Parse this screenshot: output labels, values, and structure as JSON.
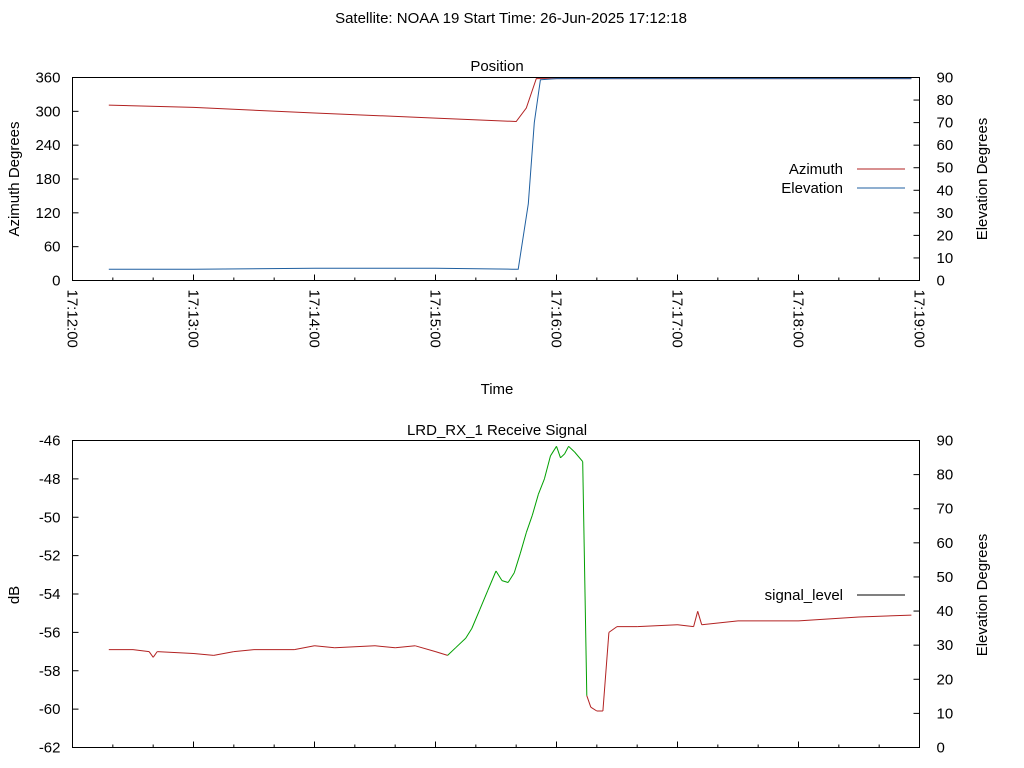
{
  "header": "Satellite: NOAA 19    Start Time: 26-Jun-2025 17:12:18",
  "chart_data": [
    {
      "type": "line",
      "title": "Position",
      "xlabel": "Time",
      "x_ticks": [
        "17:12:00",
        "17:13:00",
        "17:14:00",
        "17:15:00",
        "17:16:00",
        "17:17:00",
        "17:18:00",
        "17:19:00"
      ],
      "xlim": [
        "17:12:00",
        "17:19:00"
      ],
      "ylabel": "Azimuth Degrees",
      "ylim": [
        0,
        360
      ],
      "y_ticks": [
        "0",
        "60",
        "120",
        "180",
        "240",
        "300",
        "360"
      ],
      "y2label": "Elevation Degrees",
      "y2lim": [
        0,
        90
      ],
      "y2_ticks": [
        "0",
        "10",
        "20",
        "30",
        "40",
        "50",
        "60",
        "70",
        "80",
        "90"
      ],
      "grid": false,
      "legend": "right",
      "series": [
        {
          "name": "Azimuth",
          "axis": "left",
          "color": "#b22222",
          "points": [
            [
              "17:12:18",
              311
            ],
            [
              "17:13:00",
              307
            ],
            [
              "17:14:00",
              297
            ],
            [
              "17:15:00",
              288
            ],
            [
              "17:15:40",
              282
            ],
            [
              "17:15:45",
              306
            ],
            [
              "17:15:50",
              358
            ],
            [
              "17:16:00",
              358
            ],
            [
              "17:17:00",
              358
            ],
            [
              "17:18:00",
              358
            ],
            [
              "17:18:56",
              358
            ]
          ]
        },
        {
          "name": "Elevation",
          "axis": "right",
          "color": "#1f5fa0",
          "points": [
            [
              "17:12:18",
              5
            ],
            [
              "17:13:00",
              5
            ],
            [
              "17:14:00",
              5.4
            ],
            [
              "17:15:00",
              5.4
            ],
            [
              "17:15:38",
              5
            ],
            [
              "17:15:41",
              5
            ],
            [
              "17:15:46",
              34
            ],
            [
              "17:15:49",
              70
            ],
            [
              "17:15:52",
              89
            ],
            [
              "17:16:00",
              89.5
            ],
            [
              "17:17:00",
              89.5
            ],
            [
              "17:18:00",
              89.5
            ],
            [
              "17:18:56",
              89.5
            ]
          ]
        }
      ]
    },
    {
      "type": "line",
      "title": "LRD_RX_1 Receive Signal",
      "xlim": [
        "17:12:00",
        "17:19:00"
      ],
      "ylabel": "dB",
      "ylim": [
        -62,
        -46
      ],
      "y_ticks": [
        "-62",
        "-60",
        "-58",
        "-56",
        "-54",
        "-52",
        "-50",
        "-48",
        "-46"
      ],
      "y2label": "Elevation Degrees",
      "y2lim": [
        0,
        90
      ],
      "y2_ticks": [
        "0",
        "10",
        "20",
        "30",
        "40",
        "50",
        "60",
        "70",
        "80",
        "90"
      ],
      "grid": false,
      "legend": "right",
      "colors": {
        "below_horizon": "#b22222",
        "above_horizon": "#00a000",
        "legend_line": "#000000"
      },
      "series": [
        {
          "name": "signal_level",
          "points": [
            [
              "17:12:18",
              -56.9
            ],
            [
              "17:12:30",
              -56.9
            ],
            [
              "17:12:38",
              -57.0
            ],
            [
              "17:12:40",
              -57.3
            ],
            [
              "17:12:42",
              -57.0
            ],
            [
              "17:13:00",
              -57.1
            ],
            [
              "17:13:10",
              -57.2
            ],
            [
              "17:13:20",
              -57.0
            ],
            [
              "17:13:30",
              -56.9
            ],
            [
              "17:13:50",
              -56.9
            ],
            [
              "17:14:00",
              -56.7
            ],
            [
              "17:14:10",
              -56.8
            ],
            [
              "17:14:30",
              -56.7
            ],
            [
              "17:14:40",
              -56.8
            ],
            [
              "17:14:50",
              -56.7
            ],
            [
              "17:15:00",
              -57.0
            ],
            [
              "17:15:06",
              -57.2
            ],
            [
              "17:15:10",
              -56.8
            ],
            [
              "17:15:15",
              -56.3
            ],
            [
              "17:15:18",
              -55.8
            ],
            [
              "17:15:22",
              -54.8
            ],
            [
              "17:15:26",
              -53.8
            ],
            [
              "17:15:30",
              -52.8
            ],
            [
              "17:15:33",
              -53.3
            ],
            [
              "17:15:36",
              -53.4
            ],
            [
              "17:15:39",
              -52.9
            ],
            [
              "17:15:42",
              -51.9
            ],
            [
              "17:15:45",
              -50.8
            ],
            [
              "17:15:48",
              -49.9
            ],
            [
              "17:15:51",
              -48.8
            ],
            [
              "17:15:54",
              -48.0
            ],
            [
              "17:15:57",
              -46.8
            ],
            [
              "17:16:00",
              -46.3
            ],
            [
              "17:16:02",
              -46.9
            ],
            [
              "17:16:04",
              -46.7
            ],
            [
              "17:16:06",
              -46.3
            ],
            [
              "17:16:09",
              -46.6
            ],
            [
              "17:16:13",
              -47.1
            ],
            [
              "17:16:15",
              -59.3
            ],
            [
              "17:16:17",
              -59.9
            ],
            [
              "17:16:20",
              -60.1
            ],
            [
              "17:16:23",
              -60.1
            ],
            [
              "17:16:26",
              -56.0
            ],
            [
              "17:16:30",
              -55.7
            ],
            [
              "17:16:40",
              -55.7
            ],
            [
              "17:17:00",
              -55.6
            ],
            [
              "17:17:08",
              -55.7
            ],
            [
              "17:17:10",
              -54.9
            ],
            [
              "17:17:12",
              -55.6
            ],
            [
              "17:17:30",
              -55.4
            ],
            [
              "17:18:00",
              -55.4
            ],
            [
              "17:18:30",
              -55.2
            ],
            [
              "17:18:56",
              -55.1
            ]
          ]
        }
      ]
    }
  ]
}
